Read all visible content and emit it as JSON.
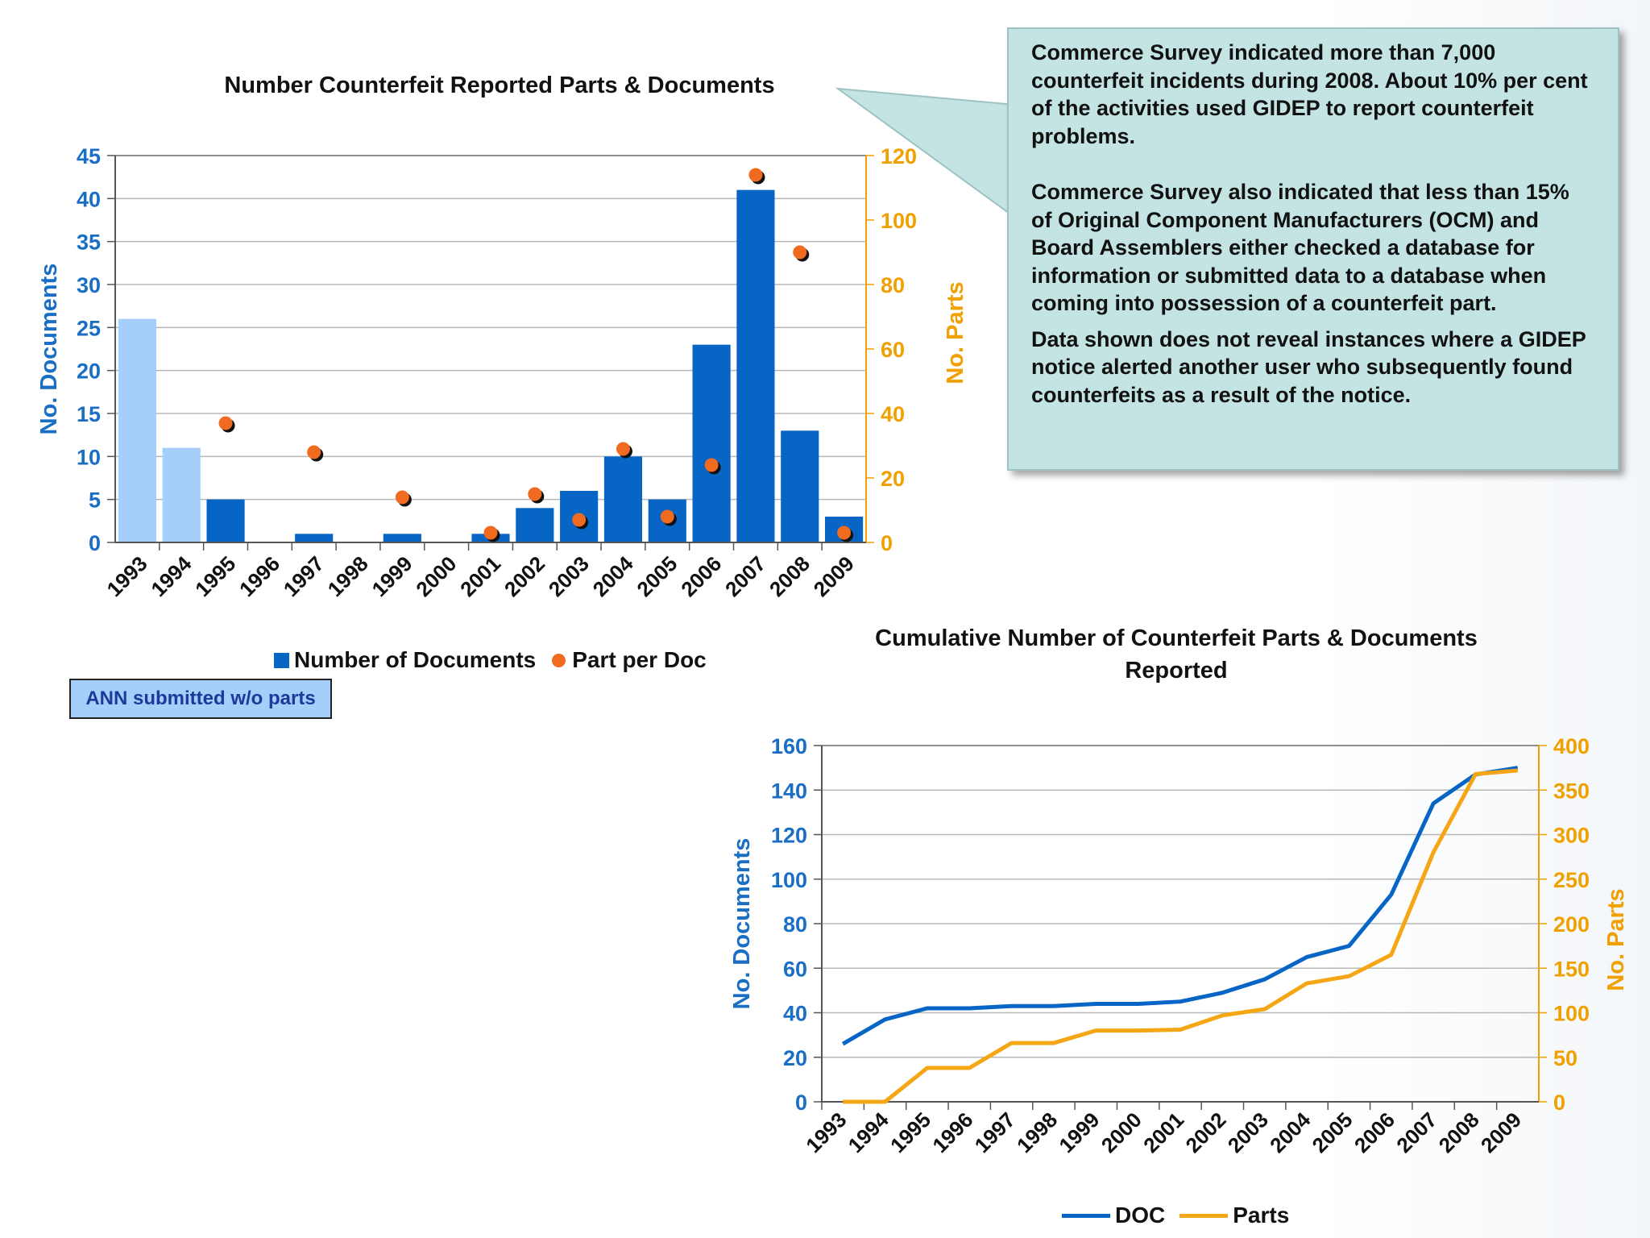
{
  "callout": {
    "paragraphs": [
      "Commerce Survey indicated more than 7,000 counterfeit incidents during 2008. About 10% per cent of the activities used GIDEP to report counterfeit problems.",
      "Commerce Survey also indicated that less than 15% of Original Component Manufacturers (OCM) and Board Assemblers either checked a database for information or submitted data to a database when coming into possession of a counterfeit part.",
      "Data shown does not reveal instances where a GIDEP notice alerted another user who subsequently found counterfeits as a result of the notice."
    ]
  },
  "annotation": {
    "label": "ANN submitted w/o parts"
  },
  "chart_data": [
    {
      "type": "bar",
      "title": "Number Counterfeit Reported Parts & Documents",
      "categories": [
        "1993",
        "1994",
        "1995",
        "1996",
        "1997",
        "1998",
        "1999",
        "2000",
        "2001",
        "2002",
        "2003",
        "2004",
        "2005",
        "2006",
        "2007",
        "2008",
        "2009"
      ],
      "ylabel": "No. Documents",
      "y2label": "No. Parts",
      "ylim": [
        0,
        45
      ],
      "yticks": [
        0,
        5,
        10,
        15,
        20,
        25,
        30,
        35,
        40,
        45
      ],
      "y2lim": [
        0,
        120
      ],
      "y2ticks": [
        0,
        20,
        40,
        60,
        80,
        100,
        120
      ],
      "grid": true,
      "legend_position": "bottom",
      "colors": {
        "bar": "#0765c6",
        "bar_no_parts": "#a6cefa",
        "dot": "#f06a1f",
        "left_axis": "#1a6fc4",
        "right_axis": "#f0a000"
      },
      "series": [
        {
          "name": "Number of Documents",
          "axis": "left",
          "type": "bar",
          "values": [
            26,
            11,
            5,
            0,
            1,
            0,
            1,
            0,
            1,
            4,
            6,
            10,
            5,
            23,
            41,
            13,
            3
          ],
          "no_parts": [
            true,
            true,
            false,
            false,
            false,
            false,
            false,
            false,
            false,
            false,
            false,
            false,
            false,
            false,
            false,
            false,
            false
          ]
        },
        {
          "name": "Part per Doc",
          "axis": "right",
          "type": "scatter",
          "values": [
            null,
            null,
            37,
            null,
            28,
            null,
            14,
            null,
            3,
            15,
            7,
            29,
            8,
            24,
            114,
            90,
            3
          ]
        }
      ]
    },
    {
      "type": "line",
      "title": "Cumulative Number of Counterfeit Parts & Documents Reported",
      "categories": [
        "1993",
        "1994",
        "1995",
        "1996",
        "1997",
        "1998",
        "1999",
        "2000",
        "2001",
        "2002",
        "2003",
        "2004",
        "2005",
        "2006",
        "2007",
        "2008",
        "2009"
      ],
      "ylabel": "No. Documents",
      "y2label": "No. Parts",
      "ylim": [
        0,
        160
      ],
      "yticks": [
        0,
        20,
        40,
        60,
        80,
        100,
        120,
        140,
        160
      ],
      "y2lim": [
        0,
        400
      ],
      "y2ticks": [
        0,
        50,
        100,
        150,
        200,
        250,
        300,
        350,
        400
      ],
      "grid": true,
      "legend_position": "bottom",
      "colors": {
        "left_axis": "#1a6fc4",
        "right_axis": "#f0a000"
      },
      "series": [
        {
          "name": "DOC",
          "axis": "left",
          "color": "#0765c6",
          "values": [
            26,
            37,
            42,
            42,
            43,
            43,
            44,
            44,
            45,
            49,
            55,
            65,
            70,
            93,
            134,
            147,
            150
          ]
        },
        {
          "name": "Parts",
          "axis": "right",
          "color": "#f5a614",
          "values": [
            0,
            0,
            38,
            38,
            66,
            66,
            80,
            80,
            81,
            97,
            104,
            133,
            141,
            165,
            280,
            368,
            372
          ]
        }
      ]
    }
  ]
}
